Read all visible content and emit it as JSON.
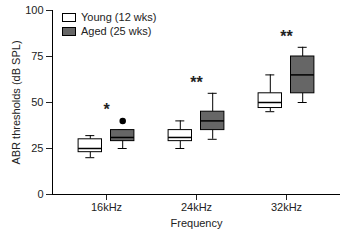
{
  "chart_data": {
    "type": "box",
    "x_label": "Frequency",
    "y_label": "ABR thresholds (dB SPL)",
    "categories": [
      "16kHz",
      "24kHz",
      "32kHz"
    ],
    "series": [
      {
        "name": "Young (12 wks)",
        "color": "#ffffff",
        "values": [
          {
            "min": 20,
            "q1": 23,
            "median": 25,
            "q3": 30,
            "max": 32,
            "outliers": []
          },
          {
            "min": 25,
            "q1": 29,
            "median": 31,
            "q3": 35,
            "max": 40,
            "outliers": []
          },
          {
            "min": 45,
            "q1": 47,
            "median": 50,
            "q3": 55,
            "max": 65,
            "outliers": []
          }
        ]
      },
      {
        "name": "Aged (25 wks)",
        "color": "#666666",
        "values": [
          {
            "min": 25,
            "q1": 29,
            "median": 31,
            "q3": 35,
            "max": 35,
            "outliers": [
              40
            ]
          },
          {
            "min": 30,
            "q1": 35,
            "median": 40,
            "q3": 45,
            "max": 55,
            "outliers": []
          },
          {
            "min": 50,
            "q1": 55,
            "median": 65,
            "q3": 75,
            "max": 80,
            "outliers": []
          }
        ]
      }
    ],
    "annotations": [
      {
        "category": "16kHz",
        "text": "*"
      },
      {
        "category": "24kHz",
        "text": "**"
      },
      {
        "category": "32kHz",
        "text": "**"
      }
    ],
    "ylim": [
      0,
      100
    ],
    "yticks": [
      0,
      25,
      50,
      75,
      100
    ],
    "legend": "top-left",
    "grid": false
  }
}
